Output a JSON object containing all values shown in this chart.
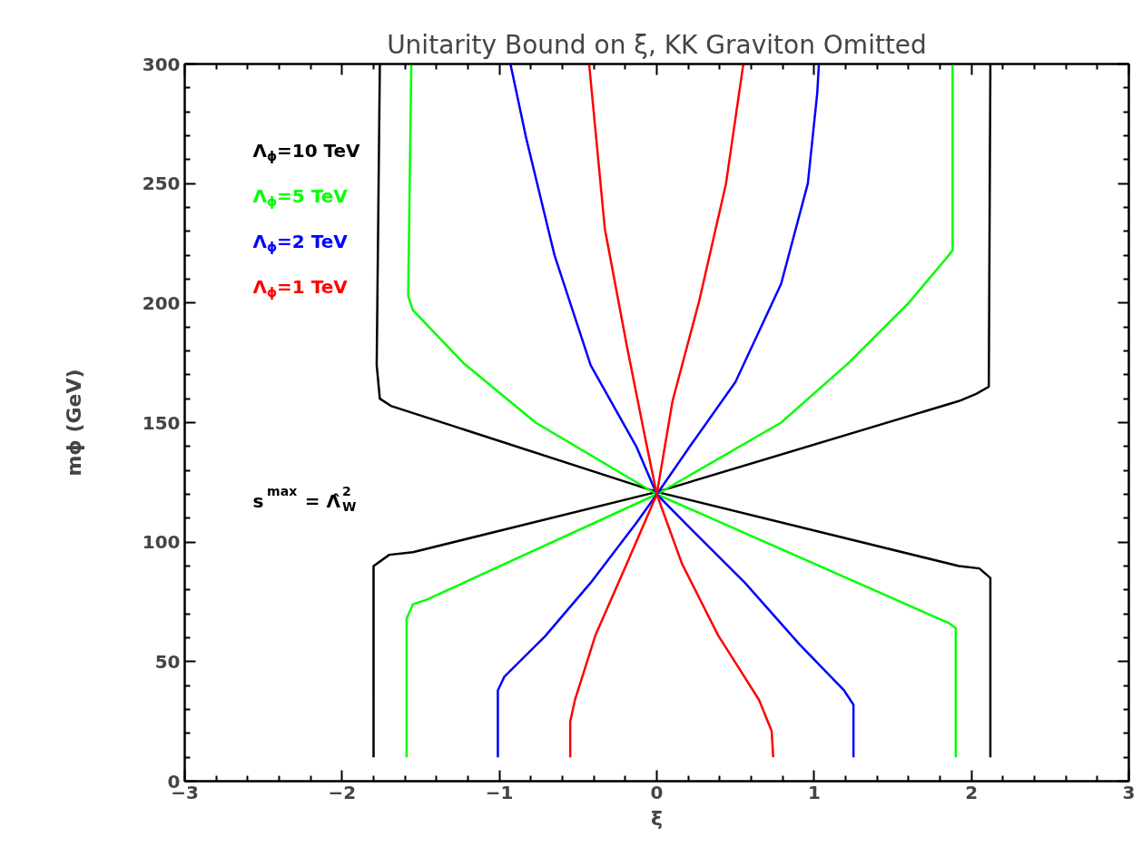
{
  "chart_data": {
    "type": "line",
    "title": "Unitarity Bound on ξ, KK Graviton Omitted",
    "xlabel": "ξ",
    "ylabel": "mϕ (GeV)",
    "xlim": [
      -3,
      3
    ],
    "ylim": [
      0,
      300
    ],
    "xticks": [
      -3,
      -2,
      -1,
      0,
      1,
      2,
      3
    ],
    "yticks": [
      0,
      50,
      100,
      150,
      200,
      250,
      300
    ],
    "grid": false,
    "legend": "top left",
    "marker": "none",
    "line_style": "solid",
    "annotations": [
      "s$^{max}$ = Λ̂$_{W}$$^{2}$"
    ],
    "series": [
      {
        "name": "Λ$_{ϕ}$=10 TeV",
        "color": "#000000",
        "x": [
          -1.8,
          -1.8,
          -1.7,
          -1.55,
          0,
          -1.69,
          -1.76,
          -1.78,
          -1.76
        ],
        "values": [
          10,
          90,
          94.7,
          95.8,
          121,
          157,
          160,
          174,
          300
        ]
      },
      {
        "color": "#000000",
        "x": [
          2.12,
          2.12,
          2.05,
          1.92,
          0,
          1.92,
          2.03,
          2.11,
          2.12
        ],
        "values": [
          10,
          85,
          89,
          90,
          121,
          159,
          162,
          165,
          300
        ]
      },
      {
        "name": "Λ$_{ϕ}$=5 TeV",
        "color": "#00ff00",
        "x": [
          -1.59,
          -1.59,
          -1.55,
          -1.46,
          0,
          -0.77,
          -1.23,
          -1.55,
          -1.58,
          -1.56
        ],
        "values": [
          10,
          68,
          74,
          76,
          120,
          150,
          175,
          197,
          203,
          300
        ]
      },
      {
        "color": "#00ff00",
        "x": [
          1.9,
          1.9,
          1.86,
          0,
          0.79,
          1.22,
          1.6,
          1.83,
          1.88,
          1.88
        ],
        "values": [
          10,
          64,
          66,
          120,
          150,
          175,
          200,
          218,
          222,
          300
        ]
      },
      {
        "name": "Λ$_{ϕ}$=2 TeV",
        "color": "#0000ff",
        "x": [
          -1.01,
          -1.01,
          -0.97,
          -0.71,
          -0.42,
          -0.13,
          0,
          -0.13,
          -0.42,
          -0.65,
          -0.83,
          -0.93
        ],
        "values": [
          10,
          38,
          43.6,
          60.6,
          83,
          108,
          120,
          140,
          174,
          220,
          269,
          300
        ]
      },
      {
        "color": "#0000ff",
        "x": [
          1.25,
          1.25,
          1.19,
          0.91,
          0.56,
          0.21,
          0,
          0.21,
          0.5,
          0.79,
          0.96,
          1.02,
          1.03
        ],
        "values": [
          10,
          32,
          38,
          57,
          83,
          106,
          120,
          140,
          167,
          208,
          250,
          288,
          300
        ]
      },
      {
        "name": "Λ$_{ϕ}$=1 TeV",
        "color": "#ff0000",
        "x": [
          -0.55,
          -0.55,
          -0.52,
          -0.39,
          -0.19,
          0,
          -0.075,
          -0.19,
          -0.33,
          -0.43
        ],
        "values": [
          10,
          25,
          34,
          61,
          91,
          120,
          144,
          182,
          231,
          300
        ]
      },
      {
        "color": "#ff0000",
        "x": [
          0.74,
          0.73,
          0.65,
          0.39,
          0.16,
          0,
          0.1,
          0.27,
          0.44,
          0.55
        ],
        "values": [
          10,
          21,
          34,
          61,
          91,
          120,
          159,
          201,
          250,
          300
        ]
      }
    ]
  }
}
